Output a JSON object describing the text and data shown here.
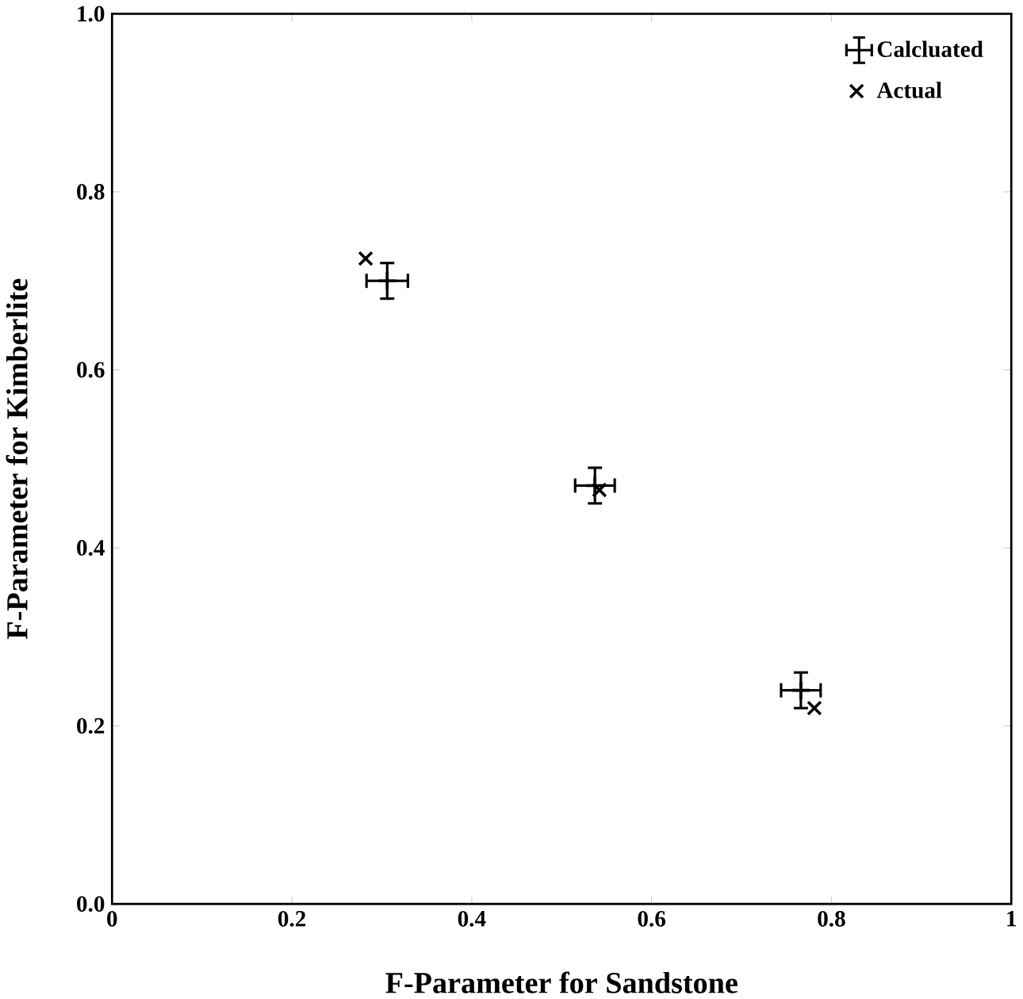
{
  "chart_data": {
    "type": "scatter",
    "xlabel": "F-Parameter for Sandstone",
    "ylabel": "F-Parameter for Kimberlite",
    "xlim": [
      0,
      1
    ],
    "ylim": [
      0,
      1
    ],
    "xticks": [
      0,
      0.2,
      0.4,
      0.6,
      0.8,
      1
    ],
    "yticks": [
      {
        "value": 0,
        "label": "0.0"
      },
      0.2,
      0.4,
      0.6,
      0.8,
      {
        "value": 1,
        "label": "1.0"
      }
    ],
    "legend": "top right",
    "grid": false,
    "series": [
      {
        "name": "Calcluated",
        "color": "#000000",
        "x": [
          0.306,
          0.537,
          0.766
        ],
        "values": [
          0.7,
          0.47,
          0.24
        ],
        "errors": [
          0.02,
          0.02,
          0.02
        ],
        "xerrors": [
          0.023,
          0.022,
          0.022
        ]
      },
      {
        "name": "Actual",
        "color": "#000000",
        "marker": "cross",
        "x": [
          0.282,
          0.542,
          0.781
        ],
        "values": [
          0.725,
          0.465,
          0.22
        ]
      }
    ]
  }
}
